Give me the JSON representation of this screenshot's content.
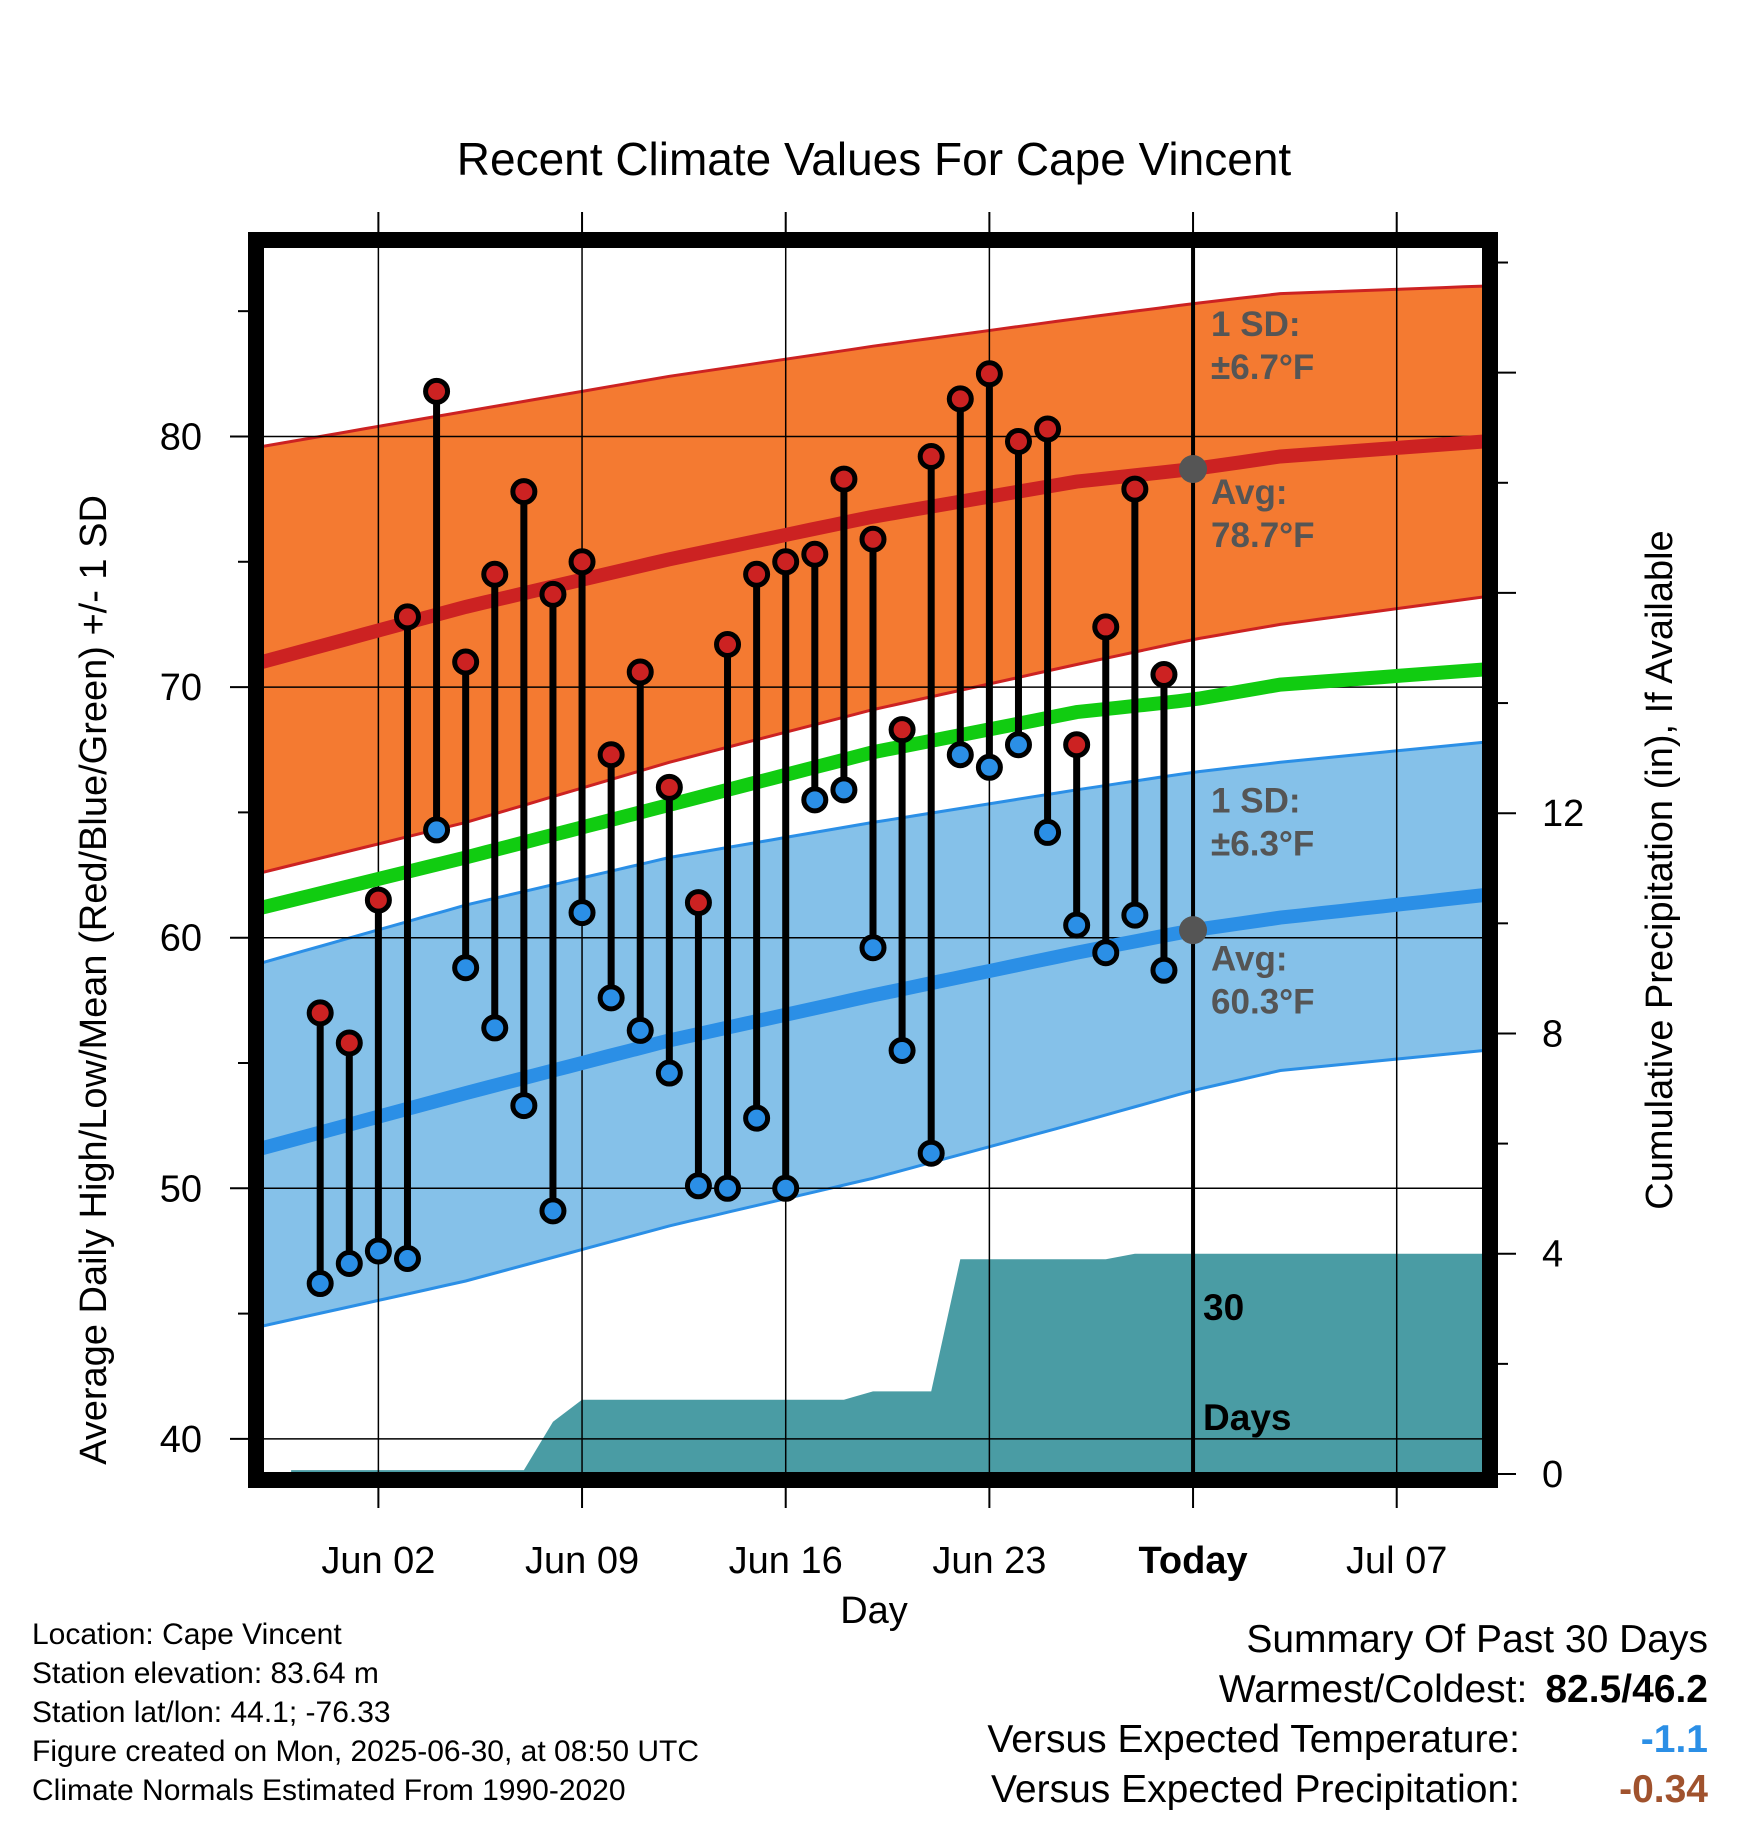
{
  "chart_data": {
    "type": "line",
    "title": "Recent Climate Values For Cape Vincent",
    "xlabel": "Day",
    "ylabel": "Average Daily High/Low/Mean (Red/Blue/Green) +/- 1 SD",
    "y2label": "Cumulative Precipitation (in), If Available",
    "ylim": [
      38.6,
      87.6
    ],
    "y2lim": [
      0,
      22.3
    ],
    "yticks": [
      "40",
      "50",
      "60",
      "70",
      "80"
    ],
    "y2ticks": [
      "0",
      "4",
      "8",
      "12"
    ],
    "x_range": [
      "2025-05-29",
      "2025-07-10"
    ],
    "xticks": [
      {
        "date": "2025-06-02",
        "label": "Jun 02"
      },
      {
        "date": "2025-06-09",
        "label": "Jun 09"
      },
      {
        "date": "2025-06-16",
        "label": "Jun 16"
      },
      {
        "date": "2025-06-23",
        "label": "Jun 23"
      },
      {
        "date": "2025-06-30",
        "label": "Today"
      },
      {
        "date": "2025-07-07",
        "label": "Jul 07"
      }
    ],
    "grid": true,
    "today": "2025-06-30",
    "today_label": [
      "30",
      "Days"
    ],
    "normals": {
      "dates": [
        "2025-05-29",
        "2025-06-05",
        "2025-06-12",
        "2025-06-19",
        "2025-06-26",
        "2025-06-30",
        "2025-07-03",
        "2025-07-10"
      ],
      "high_avg": [
        71.0,
        73.2,
        75.1,
        76.8,
        78.2,
        78.7,
        79.2,
        79.8
      ],
      "high_sd_upper": [
        79.6,
        81.0,
        82.4,
        83.6,
        84.7,
        85.3,
        85.7,
        86.0
      ],
      "high_sd_lower": [
        62.6,
        64.6,
        67.0,
        69.1,
        70.9,
        71.9,
        72.5,
        73.6
      ],
      "mean": [
        61.2,
        63.2,
        65.3,
        67.4,
        69.0,
        69.5,
        70.1,
        70.7
      ],
      "low_avg": [
        51.6,
        53.8,
        55.9,
        57.7,
        59.4,
        60.3,
        60.8,
        61.7
      ],
      "low_sd_upper": [
        59.0,
        61.3,
        63.2,
        64.6,
        65.9,
        66.6,
        67.0,
        67.8
      ],
      "low_sd_lower": [
        44.5,
        46.3,
        48.5,
        50.4,
        52.6,
        53.9,
        54.7,
        55.5
      ]
    },
    "series": [
      {
        "name": "High",
        "color": "#cc2222",
        "values": [
          {
            "date": "2025-05-31",
            "value": 57.0
          },
          {
            "date": "2025-06-01",
            "value": 55.8
          },
          {
            "date": "2025-06-02",
            "value": 61.5
          },
          {
            "date": "2025-06-03",
            "value": 72.8
          },
          {
            "date": "2025-06-04",
            "value": 81.8
          },
          {
            "date": "2025-06-05",
            "value": 71.0
          },
          {
            "date": "2025-06-06",
            "value": 74.5
          },
          {
            "date": "2025-06-07",
            "value": 77.8
          },
          {
            "date": "2025-06-08",
            "value": 73.7
          },
          {
            "date": "2025-06-09",
            "value": 75.0
          },
          {
            "date": "2025-06-10",
            "value": 67.3
          },
          {
            "date": "2025-06-11",
            "value": 70.6
          },
          {
            "date": "2025-06-12",
            "value": 66.0
          },
          {
            "date": "2025-06-13",
            "value": 61.4
          },
          {
            "date": "2025-06-14",
            "value": 71.7
          },
          {
            "date": "2025-06-15",
            "value": 74.5
          },
          {
            "date": "2025-06-16",
            "value": 75.0
          },
          {
            "date": "2025-06-17",
            "value": 75.3
          },
          {
            "date": "2025-06-18",
            "value": 78.3
          },
          {
            "date": "2025-06-19",
            "value": 75.9
          },
          {
            "date": "2025-06-20",
            "value": 68.3
          },
          {
            "date": "2025-06-21",
            "value": 79.2
          },
          {
            "date": "2025-06-22",
            "value": 81.5
          },
          {
            "date": "2025-06-23",
            "value": 82.5
          },
          {
            "date": "2025-06-24",
            "value": 79.8
          },
          {
            "date": "2025-06-25",
            "value": 80.3
          },
          {
            "date": "2025-06-26",
            "value": 67.7
          },
          {
            "date": "2025-06-27",
            "value": 72.4
          },
          {
            "date": "2025-06-28",
            "value": 77.9
          },
          {
            "date": "2025-06-29",
            "value": 70.5
          }
        ]
      },
      {
        "name": "Low",
        "color": "#2b8fe6",
        "values": [
          {
            "date": "2025-05-31",
            "value": 46.2
          },
          {
            "date": "2025-06-01",
            "value": 47.0
          },
          {
            "date": "2025-06-02",
            "value": 47.5
          },
          {
            "date": "2025-06-03",
            "value": 47.2
          },
          {
            "date": "2025-06-04",
            "value": 64.3
          },
          {
            "date": "2025-06-05",
            "value": 58.8
          },
          {
            "date": "2025-06-06",
            "value": 56.4
          },
          {
            "date": "2025-06-07",
            "value": 53.3
          },
          {
            "date": "2025-06-08",
            "value": 49.1
          },
          {
            "date": "2025-06-09",
            "value": 61.0
          },
          {
            "date": "2025-06-10",
            "value": 57.6
          },
          {
            "date": "2025-06-11",
            "value": 56.3
          },
          {
            "date": "2025-06-12",
            "value": 54.6
          },
          {
            "date": "2025-06-13",
            "value": 50.1
          },
          {
            "date": "2025-06-14",
            "value": 50.0
          },
          {
            "date": "2025-06-15",
            "value": 52.8
          },
          {
            "date": "2025-06-16",
            "value": 50.0
          },
          {
            "date": "2025-06-17",
            "value": 65.5
          },
          {
            "date": "2025-06-18",
            "value": 65.9
          },
          {
            "date": "2025-06-19",
            "value": 59.6
          },
          {
            "date": "2025-06-20",
            "value": 55.5
          },
          {
            "date": "2025-06-21",
            "value": 51.4
          },
          {
            "date": "2025-06-22",
            "value": 67.3
          },
          {
            "date": "2025-06-23",
            "value": 66.8
          },
          {
            "date": "2025-06-24",
            "value": 67.7
          },
          {
            "date": "2025-06-25",
            "value": 64.2
          },
          {
            "date": "2025-06-26",
            "value": 60.5
          },
          {
            "date": "2025-06-27",
            "value": 59.4
          },
          {
            "date": "2025-06-28",
            "value": 60.9
          },
          {
            "date": "2025-06-29",
            "value": 58.7
          }
        ]
      },
      {
        "name": "Cumulative Precipitation",
        "color": "#4a9ca4",
        "values": [
          {
            "date": "2025-05-30",
            "value": 0.07
          },
          {
            "date": "2025-06-07",
            "value": 0.07
          },
          {
            "date": "2025-06-08",
            "value": 0.95
          },
          {
            "date": "2025-06-09",
            "value": 1.35
          },
          {
            "date": "2025-06-18",
            "value": 1.35
          },
          {
            "date": "2025-06-19",
            "value": 1.5
          },
          {
            "date": "2025-06-21",
            "value": 1.5
          },
          {
            "date": "2025-06-22",
            "value": 3.9
          },
          {
            "date": "2025-06-27",
            "value": 3.9
          },
          {
            "date": "2025-06-28",
            "value": 4.0
          },
          {
            "date": "2025-07-10",
            "value": 4.0
          }
        ]
      }
    ],
    "annotations": {
      "high_sd": [
        "1 SD:",
        "±6.7°F"
      ],
      "high_avg": [
        "Avg:",
        "78.7°F"
      ],
      "low_sd": [
        "1 SD:",
        "±6.3°F"
      ],
      "low_avg": [
        "Avg:",
        "60.3°F"
      ]
    },
    "colors": {
      "high_band": "#f47a31",
      "high_line": "#cc2222",
      "mean_line": "#11cc11",
      "low_band": "#85c1e9",
      "low_line": "#2b8fe6",
      "precip": "#4a9ca4",
      "annotation_text": "#555555"
    }
  },
  "footer": {
    "location": "Location: Cape Vincent",
    "elevation": "Station elevation: 83.64 m",
    "latlon": "Station lat/lon: 44.1; -76.33",
    "created": "Figure created on Mon, 2025-06-30, at 08:50 UTC",
    "normals": "Climate Normals Estimated From 1990-2020"
  },
  "summary": {
    "title": "Summary Of Past 30 Days",
    "warm_cold_label": "Warmest/Coldest:",
    "warm_cold_value": "82.5/46.2",
    "temp_label": "Versus Expected Temperature:",
    "temp_value": "-1.1",
    "temp_color": "#2b8fe6",
    "precip_label": "Versus Expected Precipitation:",
    "precip_value": "-0.34",
    "precip_color": "#a0522d"
  }
}
